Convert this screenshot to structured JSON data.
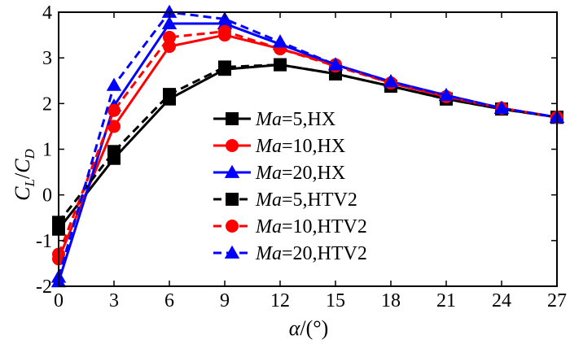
{
  "chart_data": {
    "type": "line",
    "x": [
      0,
      3,
      6,
      9,
      12,
      15,
      18,
      21,
      24,
      27
    ],
    "xlim": [
      0,
      27
    ],
    "ylim": [
      -2,
      4
    ],
    "xticks": [
      "0",
      "3",
      "6",
      "9",
      "12",
      "15",
      "18",
      "21",
      "24",
      "27"
    ],
    "yticks": [
      "-2",
      "-1",
      "0",
      "1",
      "2",
      "3",
      "4"
    ],
    "xlabel": {
      "symbol": "α",
      "unit": "/(°)"
    },
    "ylabel": {
      "c": "C",
      "l": "L",
      "slash": "/",
      "d": "D"
    },
    "legend_position": "center",
    "series": [
      {
        "ma": "Ma",
        "rest": "=5,HX",
        "color": "#000000",
        "dash": "solid",
        "marker": "square",
        "values": [
          -0.75,
          0.8,
          2.1,
          2.75,
          2.85,
          2.65,
          2.38,
          2.1,
          1.88,
          1.7
        ]
      },
      {
        "ma": "Ma",
        "rest": "=10,HX",
        "color": "#ff0000",
        "dash": "solid",
        "marker": "circle",
        "values": [
          -1.4,
          1.5,
          3.25,
          3.5,
          3.2,
          2.85,
          2.45,
          2.15,
          1.9,
          1.7
        ]
      },
      {
        "ma": "Ma",
        "rest": "=20,HX",
        "color": "#0000ff",
        "dash": "solid",
        "marker": "triangle",
        "values": [
          -1.9,
          1.95,
          3.75,
          3.75,
          3.3,
          2.85,
          2.48,
          2.18,
          1.9,
          1.7
        ]
      },
      {
        "ma": "Ma",
        "rest": "=5,HTV2",
        "color": "#000000",
        "dash": "dashed",
        "marker": "square",
        "values": [
          -0.6,
          0.95,
          2.2,
          2.8,
          2.85,
          2.65,
          2.38,
          2.1,
          1.88,
          1.7
        ]
      },
      {
        "ma": "Ma",
        "rest": "=10,HTV2",
        "color": "#ff0000",
        "dash": "dashed",
        "marker": "circle",
        "values": [
          -1.3,
          1.85,
          3.45,
          3.58,
          3.2,
          2.82,
          2.45,
          2.15,
          1.9,
          1.7
        ]
      },
      {
        "ma": "Ma",
        "rest": "=20,HTV2",
        "color": "#0000ff",
        "dash": "dashed",
        "marker": "triangle",
        "values": [
          -1.8,
          2.4,
          4.0,
          3.85,
          3.35,
          2.85,
          2.48,
          2.18,
          1.9,
          1.7
        ]
      }
    ]
  }
}
